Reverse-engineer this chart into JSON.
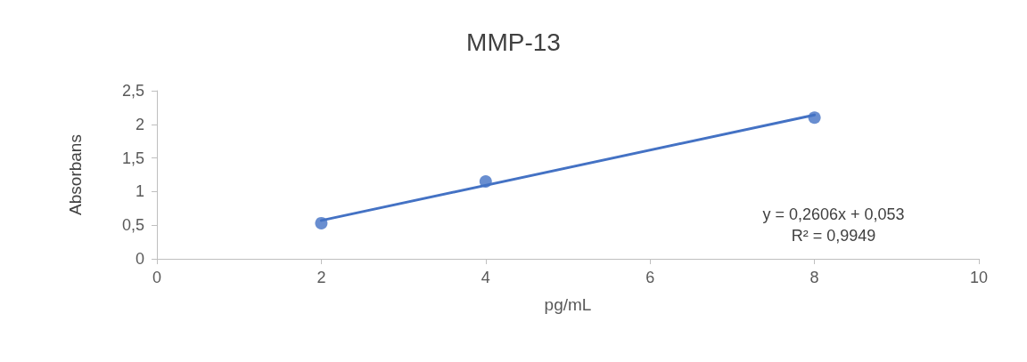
{
  "chart_data": {
    "type": "scatter",
    "title": "MMP-13",
    "xlabel": "pg/mL",
    "ylabel": "Absorbans",
    "series": [
      {
        "color": "#4472c4",
        "x": [
          2,
          4,
          8
        ],
        "values": [
          0.53,
          1.15,
          2.1
        ],
        "marker": "circle"
      },
      {
        "type": "line",
        "color": "#4472c4",
        "x": [
          2,
          8
        ],
        "values": [
          0.57,
          2.14
        ],
        "marker": "none"
      }
    ],
    "xlim": [
      0,
      10
    ],
    "xticks": [
      0,
      2,
      4,
      6,
      8,
      10
    ],
    "ylim": [
      0,
      2.5
    ],
    "yticks": [
      0,
      {
        "value": 0.5,
        "label": "0,5"
      },
      1,
      {
        "value": 1.5,
        "label": "1,5"
      },
      2,
      {
        "value": 2.5,
        "label": "2,5"
      }
    ],
    "grid": false,
    "annotations": [
      "y = 0,2606x + 0,053",
      "R² = 0,9949"
    ]
  }
}
